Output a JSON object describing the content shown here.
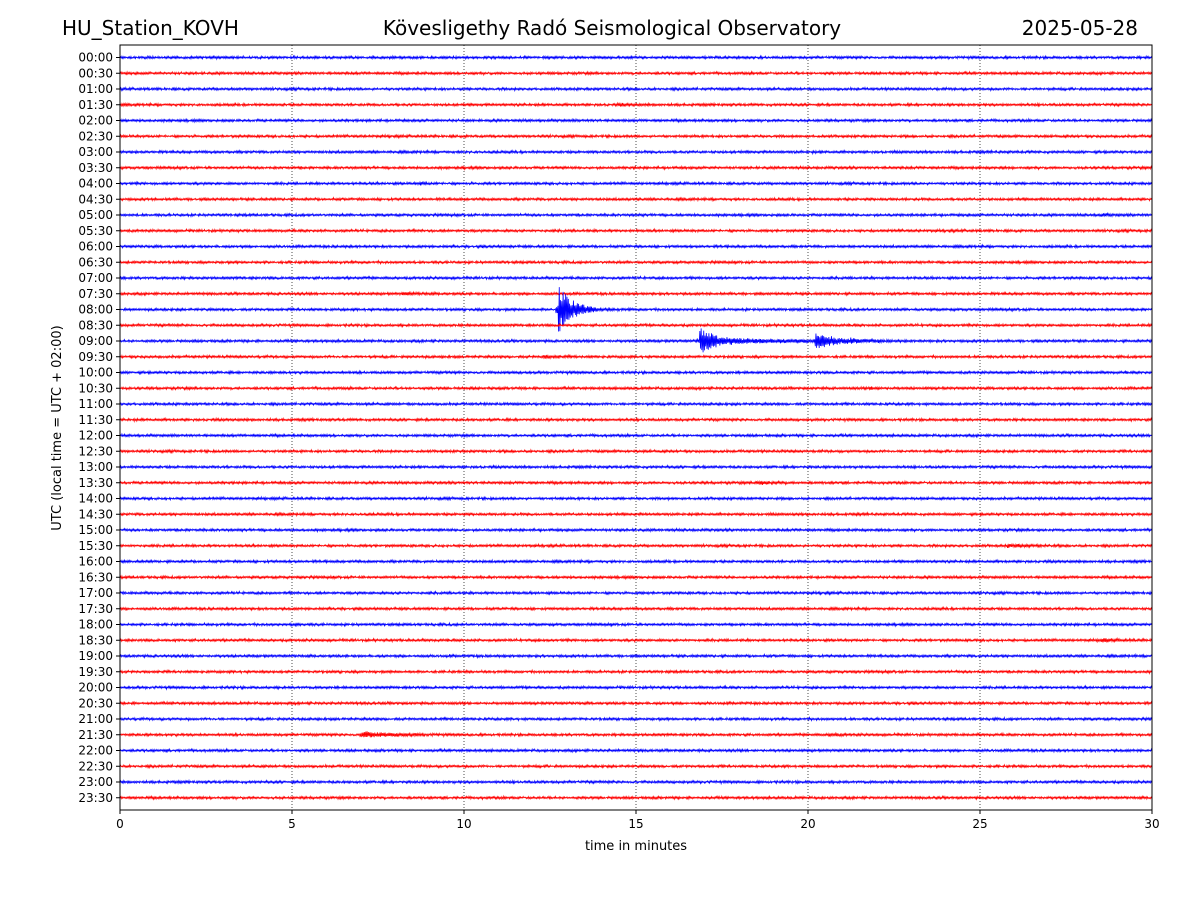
{
  "chart_data": {
    "type": "line",
    "title_left": "HU_Station_KOVH",
    "title": "Kövesligethy Radó Seismological Observatory",
    "title_right": "2025-05-28",
    "xlabel": "time in minutes",
    "ylabel": "UTC (local time = UTC + 02:00)",
    "xlim": [
      0,
      30
    ],
    "x_ticks": [
      "0",
      "5",
      "10",
      "15",
      "20",
      "25",
      "30"
    ],
    "x_tick_values": [
      0,
      5,
      10,
      15,
      20,
      25,
      30
    ],
    "grid": "vertical dotted at x ticks",
    "row_labels": [
      "00:00",
      "00:30",
      "01:00",
      "01:30",
      "02:00",
      "02:30",
      "03:00",
      "03:30",
      "04:00",
      "04:30",
      "05:00",
      "05:30",
      "06:00",
      "06:30",
      "07:00",
      "07:30",
      "08:00",
      "08:30",
      "09:00",
      "09:30",
      "10:00",
      "10:30",
      "11:00",
      "11:30",
      "12:00",
      "12:30",
      "13:00",
      "13:30",
      "14:00",
      "14:30",
      "15:00",
      "15:30",
      "16:00",
      "16:30",
      "17:00",
      "17:30",
      "18:00",
      "18:30",
      "19:00",
      "19:30",
      "20:00",
      "20:30",
      "21:00",
      "21:30",
      "22:00",
      "22:30",
      "23:00",
      "23:30"
    ],
    "colors": [
      "#0000ff",
      "#ff0000"
    ],
    "events": [
      {
        "row": 16,
        "t": 12.75,
        "amp": 14.0,
        "decay": 0.35,
        "coda": 1.2,
        "coda_amp": 1.5
      },
      {
        "row": 18,
        "t": 16.85,
        "amp": 7.0,
        "decay": 0.4,
        "coda": 5.0,
        "coda_amp": 1.2
      },
      {
        "row": 18,
        "t": 20.2,
        "amp": 4.0,
        "decay": 0.4,
        "coda": 2.5,
        "coda_amp": 1.0
      },
      {
        "row": 43,
        "t": 7.0,
        "amp": 1.2,
        "decay": 0.5,
        "coda": 2.5,
        "coda_amp": 0.6
      },
      {
        "row": 15,
        "t": 8.2,
        "amp": 0.5,
        "decay": 0.4,
        "coda": 0.3,
        "coda_amp": 0.3
      },
      {
        "row": 19,
        "t": 12.3,
        "amp": 0.5,
        "decay": 0.4,
        "coda": 0.3,
        "coda_amp": 0.3
      },
      {
        "row": 27,
        "t": 18.5,
        "amp": 0.5,
        "decay": 0.5,
        "coda": 1.0,
        "coda_amp": 0.3
      },
      {
        "row": 31,
        "t": 25.8,
        "amp": 0.4,
        "decay": 0.5,
        "coda": 1.5,
        "coda_amp": 0.25
      },
      {
        "row": 37,
        "t": 28.5,
        "amp": 0.5,
        "decay": 0.4,
        "coda": 0.6,
        "coda_amp": 0.25
      },
      {
        "row": 3,
        "t": 14.5,
        "amp": 0.4,
        "decay": 0.3,
        "coda": 0.2,
        "coda_amp": 0.2
      },
      {
        "row": 8,
        "t": 8.7,
        "amp": 0.3,
        "decay": 0.3,
        "coda": 0.2,
        "coda_amp": 0.2
      },
      {
        "row": 10,
        "t": 28.5,
        "amp": 0.35,
        "decay": 0.3,
        "coda": 0.3,
        "coda_amp": 0.2
      },
      {
        "row": 21,
        "t": 21.8,
        "amp": 0.35,
        "decay": 0.3,
        "coda": 0.3,
        "coda_amp": 0.2
      },
      {
        "row": 43,
        "t": 20.6,
        "amp": 0.4,
        "decay": 0.3,
        "coda": 0.4,
        "coda_amp": 0.2
      },
      {
        "row": 36,
        "t": 5.0,
        "amp": 0.4,
        "decay": 0.2,
        "coda": 0.1,
        "coda_amp": 0.1
      }
    ]
  }
}
